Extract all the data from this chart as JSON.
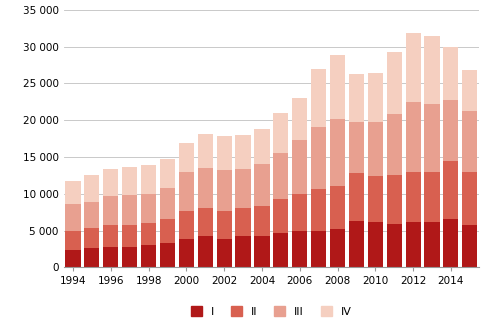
{
  "years": [
    1994,
    1995,
    1996,
    1997,
    1998,
    1999,
    2000,
    2001,
    2002,
    2003,
    2004,
    2005,
    2006,
    2007,
    2008,
    2009,
    2010,
    2011,
    2012,
    2013,
    2014,
    2015
  ],
  "Q1": [
    2300,
    2600,
    2700,
    2800,
    3000,
    3300,
    3900,
    4200,
    3800,
    4200,
    4300,
    4700,
    4900,
    5000,
    5200,
    6300,
    6100,
    5900,
    6100,
    6200,
    6600,
    5700
  ],
  "Q2": [
    2700,
    2700,
    3000,
    3000,
    3000,
    3300,
    3700,
    3900,
    3900,
    3800,
    4000,
    4600,
    5100,
    5600,
    5900,
    6500,
    6300,
    6700,
    6800,
    6800,
    7800,
    7200
  ],
  "Q3": [
    3600,
    3600,
    4000,
    4000,
    4000,
    4200,
    5300,
    5400,
    5500,
    5400,
    5700,
    6300,
    7300,
    8500,
    9000,
    7000,
    7300,
    8200,
    9500,
    9200,
    8300,
    8300
  ],
  "Q4": [
    3100,
    3600,
    3700,
    3900,
    3900,
    3900,
    4000,
    4600,
    4600,
    4600,
    4800,
    5400,
    5700,
    7900,
    8800,
    6500,
    6700,
    8500,
    9500,
    9200,
    7300,
    5600
  ],
  "colors": [
    "#b01818",
    "#d86050",
    "#e8a090",
    "#f5cfc0"
  ],
  "ylim": [
    0,
    35000
  ],
  "yticks": [
    0,
    5000,
    10000,
    15000,
    20000,
    25000,
    30000,
    35000
  ],
  "ytick_labels": [
    "0",
    "5 000",
    "10 000",
    "15 000",
    "20 000",
    "25 000",
    "30 000",
    "35 000"
  ],
  "xtick_labels": [
    "1994",
    "1996",
    "1998",
    "2000",
    "2002",
    "2004",
    "2006",
    "2008",
    "2010",
    "2012",
    "2014"
  ],
  "legend_labels": [
    "I",
    "II",
    "III",
    "IV"
  ],
  "background_color": "#ffffff",
  "grid_color": "#c0c0c0"
}
